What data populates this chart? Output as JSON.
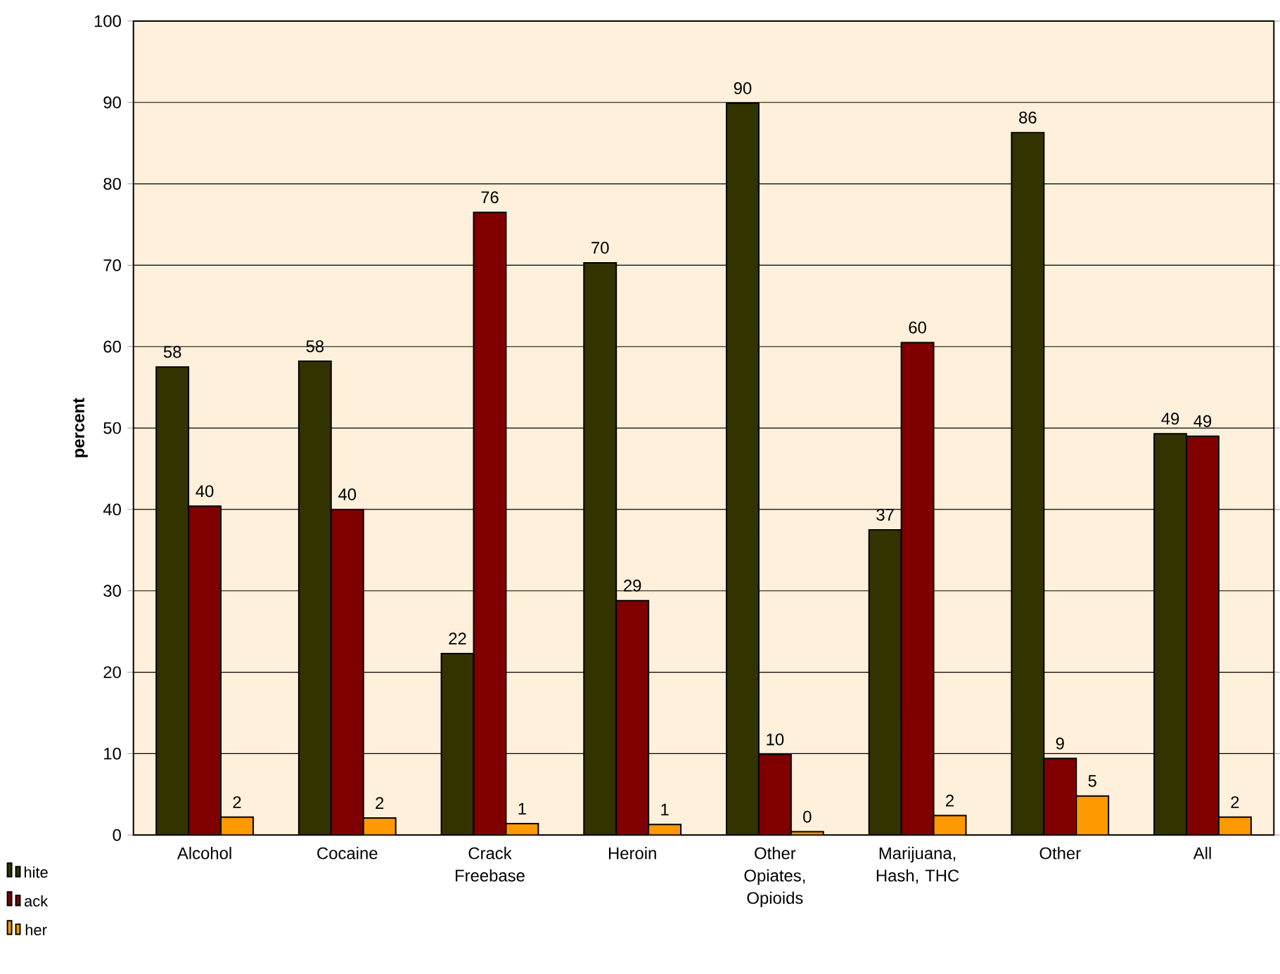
{
  "chart_data": {
    "type": "bar",
    "ylabel": "percent",
    "categories": [
      "Alcohol",
      "Cocaine",
      "Crack Freebase",
      "Heroin",
      "Other Opiates, Opioids",
      "Marijuana, Hash, THC",
      "Other",
      "All"
    ],
    "series": [
      {
        "name": "hite",
        "color": "#333300",
        "values": [
          57.5,
          58.2,
          22.3,
          70.3,
          89.9,
          37.5,
          86.3,
          49.3
        ],
        "value_labels": [
          "58",
          "58",
          "22",
          "70",
          "90",
          "37",
          "86",
          "49"
        ]
      },
      {
        "name": "ack",
        "color": "#800000",
        "values": [
          40.4,
          40.0,
          76.5,
          28.8,
          9.9,
          60.5,
          9.4,
          49.0
        ],
        "value_labels": [
          "40",
          "40",
          "76",
          "29",
          "10",
          "60",
          "9",
          "49"
        ]
      },
      {
        "name": "her",
        "color": "#ff9900",
        "values": [
          2.2,
          2.1,
          1.4,
          1.3,
          0.4,
          2.4,
          4.8,
          2.2
        ],
        "value_labels": [
          "2",
          "2",
          "1",
          "1",
          "0",
          "2",
          "5",
          "2"
        ]
      }
    ],
    "ylim": [
      0,
      100
    ],
    "yticks": [
      0,
      10,
      20,
      30,
      40,
      50,
      60,
      70,
      80,
      90,
      100
    ],
    "grid": "y",
    "legend": "bottom left"
  }
}
